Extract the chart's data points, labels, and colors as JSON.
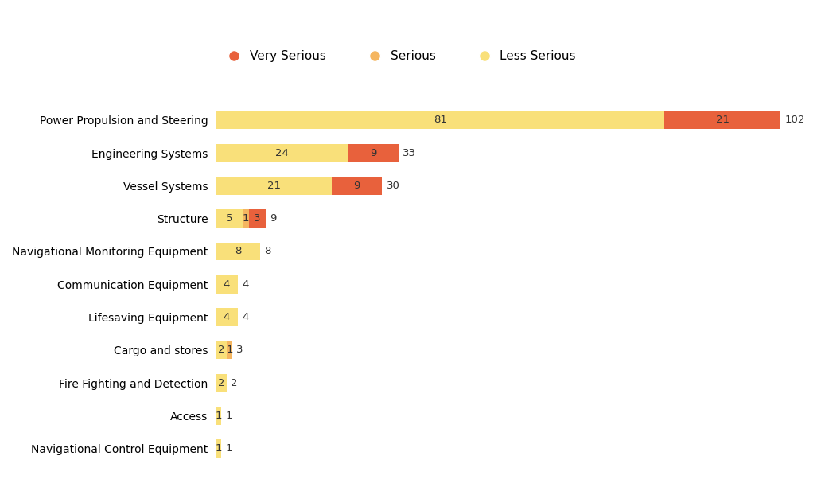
{
  "categories": [
    "Power Propulsion and Steering",
    "Engineering Systems",
    "Vessel Systems",
    "Structure",
    "Navigational Monitoring Equipment",
    "Communication Equipment",
    "Lifesaving Equipment",
    "Cargo and stores",
    "Fire Fighting and Detection",
    "Access",
    "Navigational Control Equipment"
  ],
  "less_serious": [
    81,
    24,
    21,
    5,
    8,
    4,
    4,
    2,
    2,
    1,
    1
  ],
  "serious": [
    0,
    0,
    0,
    1,
    0,
    0,
    0,
    1,
    0,
    0,
    0
  ],
  "very_serious": [
    21,
    9,
    9,
    3,
    0,
    0,
    0,
    0,
    0,
    0,
    0
  ],
  "totals": [
    102,
    33,
    30,
    9,
    8,
    4,
    4,
    3,
    2,
    1,
    1
  ],
  "color_less_serious": "#F9E07A",
  "color_serious": "#F5B660",
  "color_very_serious": "#E8613C",
  "legend_labels": [
    "Very Serious",
    "Serious",
    "Less Serious"
  ],
  "background_color": "#ffffff",
  "bar_height": 0.55,
  "fontsize_labels": 10,
  "fontsize_bar": 9.5
}
